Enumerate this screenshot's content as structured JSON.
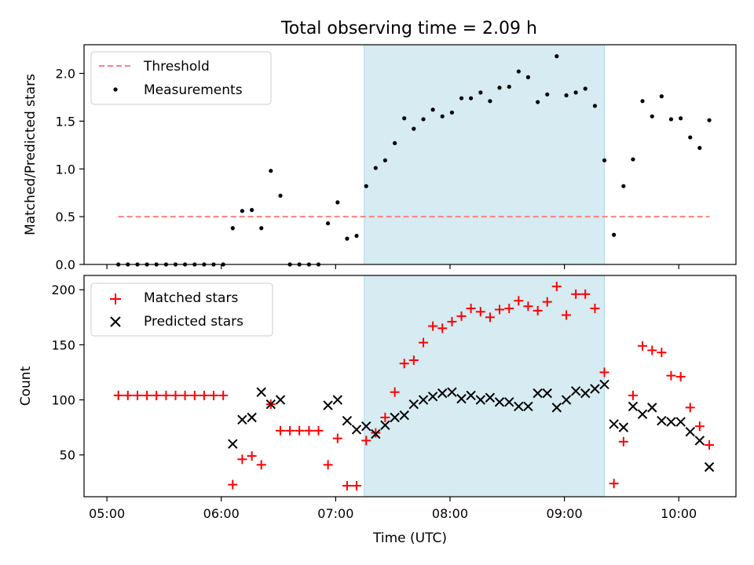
{
  "chart_data": [
    {
      "type": "scatter",
      "title": "Total observing time = 2.09 h",
      "ylabel": "Matched/Predicted stars",
      "xlim": [
        4.8,
        10.5
      ],
      "ylim": [
        0,
        2.3
      ],
      "yticks": [
        {
          "value": 0.0,
          "label": "0.0"
        },
        {
          "value": 0.5,
          "label": "0.5"
        },
        {
          "value": 1.0,
          "label": "1.0"
        },
        {
          "value": 1.5,
          "label": "1.5"
        },
        {
          "value": 2.0,
          "label": "2.0"
        }
      ],
      "observing_window": {
        "start": 7.25,
        "end": 9.35,
        "color": "#add8e6"
      },
      "threshold": {
        "name": "Threshold",
        "y": 0.5,
        "x_start": 5.1,
        "x_end": 10.27,
        "color": "#ff7f7f"
      },
      "legend": {
        "position": "top-left",
        "entries": [
          "Threshold",
          "Measurements"
        ]
      },
      "series": [
        {
          "name": "Measurements",
          "color": "#000000",
          "marker": "dot",
          "points": [
            [
              5.1,
              0
            ],
            [
              5.183,
              0
            ],
            [
              5.267,
              0
            ],
            [
              5.35,
              0
            ],
            [
              5.433,
              0
            ],
            [
              5.517,
              0
            ],
            [
              5.6,
              0
            ],
            [
              5.683,
              0
            ],
            [
              5.767,
              0
            ],
            [
              5.85,
              0
            ],
            [
              5.933,
              0
            ],
            [
              6.017,
              0
            ],
            [
              6.1,
              0.38
            ],
            [
              6.183,
              0.56
            ],
            [
              6.267,
              0.57
            ],
            [
              6.35,
              0.38
            ],
            [
              6.433,
              0.98
            ],
            [
              6.517,
              0.72
            ],
            [
              6.6,
              0
            ],
            [
              6.683,
              0
            ],
            [
              6.767,
              0
            ],
            [
              6.85,
              0
            ],
            [
              6.933,
              0.43
            ],
            [
              7.017,
              0.65
            ],
            [
              7.1,
              0.27
            ],
            [
              7.183,
              0.3
            ],
            [
              7.267,
              0.82
            ],
            [
              7.35,
              1.01
            ],
            [
              7.433,
              1.09
            ],
            [
              7.517,
              1.27
            ],
            [
              7.6,
              1.53
            ],
            [
              7.683,
              1.42
            ],
            [
              7.767,
              1.52
            ],
            [
              7.85,
              1.62
            ],
            [
              7.933,
              1.55
            ],
            [
              8.017,
              1.59
            ],
            [
              8.1,
              1.74
            ],
            [
              8.183,
              1.74
            ],
            [
              8.267,
              1.8
            ],
            [
              8.35,
              1.71
            ],
            [
              8.433,
              1.85
            ],
            [
              8.517,
              1.86
            ],
            [
              8.6,
              2.02
            ],
            [
              8.683,
              1.96
            ],
            [
              8.767,
              1.7
            ],
            [
              8.85,
              1.78
            ],
            [
              8.933,
              2.18
            ],
            [
              9.017,
              1.77
            ],
            [
              9.1,
              1.8
            ],
            [
              9.183,
              1.84
            ],
            [
              9.267,
              1.66
            ],
            [
              9.35,
              1.09
            ],
            [
              9.433,
              0.31
            ],
            [
              9.517,
              0.82
            ],
            [
              9.6,
              1.1
            ],
            [
              9.683,
              1.71
            ],
            [
              9.767,
              1.55
            ],
            [
              9.85,
              1.76
            ],
            [
              9.933,
              1.52
            ],
            [
              10.017,
              1.53
            ],
            [
              10.1,
              1.33
            ],
            [
              10.183,
              1.22
            ],
            [
              10.267,
              1.51
            ]
          ]
        }
      ]
    },
    {
      "type": "scatter",
      "xlabel": "Time (UTC)",
      "ylabel": "Count",
      "xlim": [
        4.8,
        10.5
      ],
      "ylim": [
        12,
        213
      ],
      "xticks": [
        {
          "value": 5,
          "label": "05:00"
        },
        {
          "value": 6,
          "label": "06:00"
        },
        {
          "value": 7,
          "label": "07:00"
        },
        {
          "value": 8,
          "label": "08:00"
        },
        {
          "value": 9,
          "label": "09:00"
        },
        {
          "value": 10,
          "label": "10:00"
        }
      ],
      "yticks": [
        {
          "value": 50,
          "label": "50"
        },
        {
          "value": 100,
          "label": "100"
        },
        {
          "value": 150,
          "label": "150"
        },
        {
          "value": 200,
          "label": "200"
        }
      ],
      "observing_window": {
        "start": 7.25,
        "end": 9.35,
        "color": "#add8e6"
      },
      "legend": {
        "position": "top-left",
        "entries": [
          "Matched stars",
          "Predicted stars"
        ]
      },
      "series": [
        {
          "name": "Matched stars",
          "color": "#ff0000",
          "marker": "plus",
          "points": [
            [
              5.1,
              104
            ],
            [
              5.183,
              104
            ],
            [
              5.267,
              104
            ],
            [
              5.35,
              104
            ],
            [
              5.433,
              104
            ],
            [
              5.517,
              104
            ],
            [
              5.6,
              104
            ],
            [
              5.683,
              104
            ],
            [
              5.767,
              104
            ],
            [
              5.85,
              104
            ],
            [
              5.933,
              104
            ],
            [
              6.017,
              104
            ],
            [
              6.1,
              23
            ],
            [
              6.183,
              46
            ],
            [
              6.267,
              49
            ],
            [
              6.35,
              41
            ],
            [
              6.433,
              96
            ],
            [
              6.517,
              72
            ],
            [
              6.6,
              72
            ],
            [
              6.683,
              72
            ],
            [
              6.767,
              72
            ],
            [
              6.85,
              72
            ],
            [
              6.933,
              41
            ],
            [
              7.017,
              65
            ],
            [
              7.1,
              22
            ],
            [
              7.183,
              22
            ],
            [
              7.267,
              63
            ],
            [
              7.35,
              70
            ],
            [
              7.433,
              84
            ],
            [
              7.517,
              107
            ],
            [
              7.6,
              133
            ],
            [
              7.683,
              136
            ],
            [
              7.767,
              152
            ],
            [
              7.85,
              167
            ],
            [
              7.933,
              165
            ],
            [
              8.017,
              171
            ],
            [
              8.1,
              176
            ],
            [
              8.183,
              183
            ],
            [
              8.267,
              180
            ],
            [
              8.35,
              175
            ],
            [
              8.433,
              182
            ],
            [
              8.517,
              183
            ],
            [
              8.6,
              190
            ],
            [
              8.683,
              185
            ],
            [
              8.767,
              181
            ],
            [
              8.85,
              189
            ],
            [
              8.933,
              203
            ],
            [
              9.017,
              177
            ],
            [
              9.1,
              196
            ],
            [
              9.183,
              196
            ],
            [
              9.267,
              183
            ],
            [
              9.35,
              125
            ],
            [
              9.433,
              24
            ],
            [
              9.517,
              62
            ],
            [
              9.6,
              104
            ],
            [
              9.683,
              149
            ],
            [
              9.767,
              145
            ],
            [
              9.85,
              143
            ],
            [
              9.933,
              122
            ],
            [
              10.017,
              121
            ],
            [
              10.1,
              93
            ],
            [
              10.183,
              76
            ],
            [
              10.267,
              59
            ]
          ]
        },
        {
          "name": "Predicted stars",
          "color": "#000000",
          "marker": "x",
          "points": [
            [
              6.1,
              60
            ],
            [
              6.183,
              82
            ],
            [
              6.267,
              84
            ],
            [
              6.35,
              107
            ],
            [
              6.433,
              96
            ],
            [
              6.517,
              100
            ],
            [
              6.933,
              95
            ],
            [
              7.017,
              100
            ],
            [
              7.1,
              81
            ],
            [
              7.183,
              73
            ],
            [
              7.267,
              76
            ],
            [
              7.35,
              69
            ],
            [
              7.433,
              77
            ],
            [
              7.517,
              84
            ],
            [
              7.6,
              86
            ],
            [
              7.683,
              96
            ],
            [
              7.767,
              100
            ],
            [
              7.85,
              103
            ],
            [
              7.933,
              106
            ],
            [
              8.017,
              107
            ],
            [
              8.1,
              101
            ],
            [
              8.183,
              104
            ],
            [
              8.267,
              100
            ],
            [
              8.35,
              102
            ],
            [
              8.433,
              98
            ],
            [
              8.517,
              98
            ],
            [
              8.6,
              94
            ],
            [
              8.683,
              94
            ],
            [
              8.767,
              106
            ],
            [
              8.85,
              106
            ],
            [
              8.933,
              93
            ],
            [
              9.017,
              100
            ],
            [
              9.1,
              108
            ],
            [
              9.183,
              106
            ],
            [
              9.267,
              110
            ],
            [
              9.35,
              114
            ],
            [
              9.433,
              78
            ],
            [
              9.517,
              75
            ],
            [
              9.6,
              94
            ],
            [
              9.683,
              87
            ],
            [
              9.767,
              93
            ],
            [
              9.85,
              81
            ],
            [
              9.933,
              80
            ],
            [
              10.017,
              80
            ],
            [
              10.1,
              71
            ],
            [
              10.183,
              63
            ],
            [
              10.267,
              39
            ]
          ]
        }
      ]
    }
  ]
}
